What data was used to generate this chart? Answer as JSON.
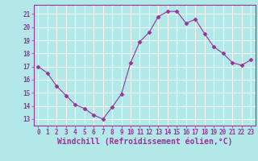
{
  "x": [
    0,
    1,
    2,
    3,
    4,
    5,
    6,
    7,
    8,
    9,
    10,
    11,
    12,
    13,
    14,
    15,
    16,
    17,
    18,
    19,
    20,
    21,
    22,
    23
  ],
  "y": [
    17.0,
    16.5,
    15.5,
    14.8,
    14.1,
    13.8,
    13.3,
    13.0,
    13.9,
    14.9,
    17.3,
    18.9,
    19.6,
    20.8,
    21.2,
    21.2,
    20.3,
    20.6,
    19.5,
    18.5,
    18.0,
    17.3,
    17.1,
    17.5
  ],
  "xlim": [
    -0.5,
    23.5
  ],
  "ylim": [
    12.5,
    21.7
  ],
  "xticks": [
    0,
    1,
    2,
    3,
    4,
    5,
    6,
    7,
    8,
    9,
    10,
    11,
    12,
    13,
    14,
    15,
    16,
    17,
    18,
    19,
    20,
    21,
    22,
    23
  ],
  "yticks": [
    13,
    14,
    15,
    16,
    17,
    18,
    19,
    20,
    21
  ],
  "xlabel": "Windchill (Refroidissement éolien,°C)",
  "line_color": "#993399",
  "marker": "D",
  "marker_size": 2.5,
  "bg_color": "#b3e8e8",
  "grid_color": "#ffffff",
  "tick_label_color": "#993399",
  "xlabel_color": "#993399",
  "tick_fontsize": 5.5,
  "xlabel_fontsize": 7.0,
  "spine_color": "#993399"
}
